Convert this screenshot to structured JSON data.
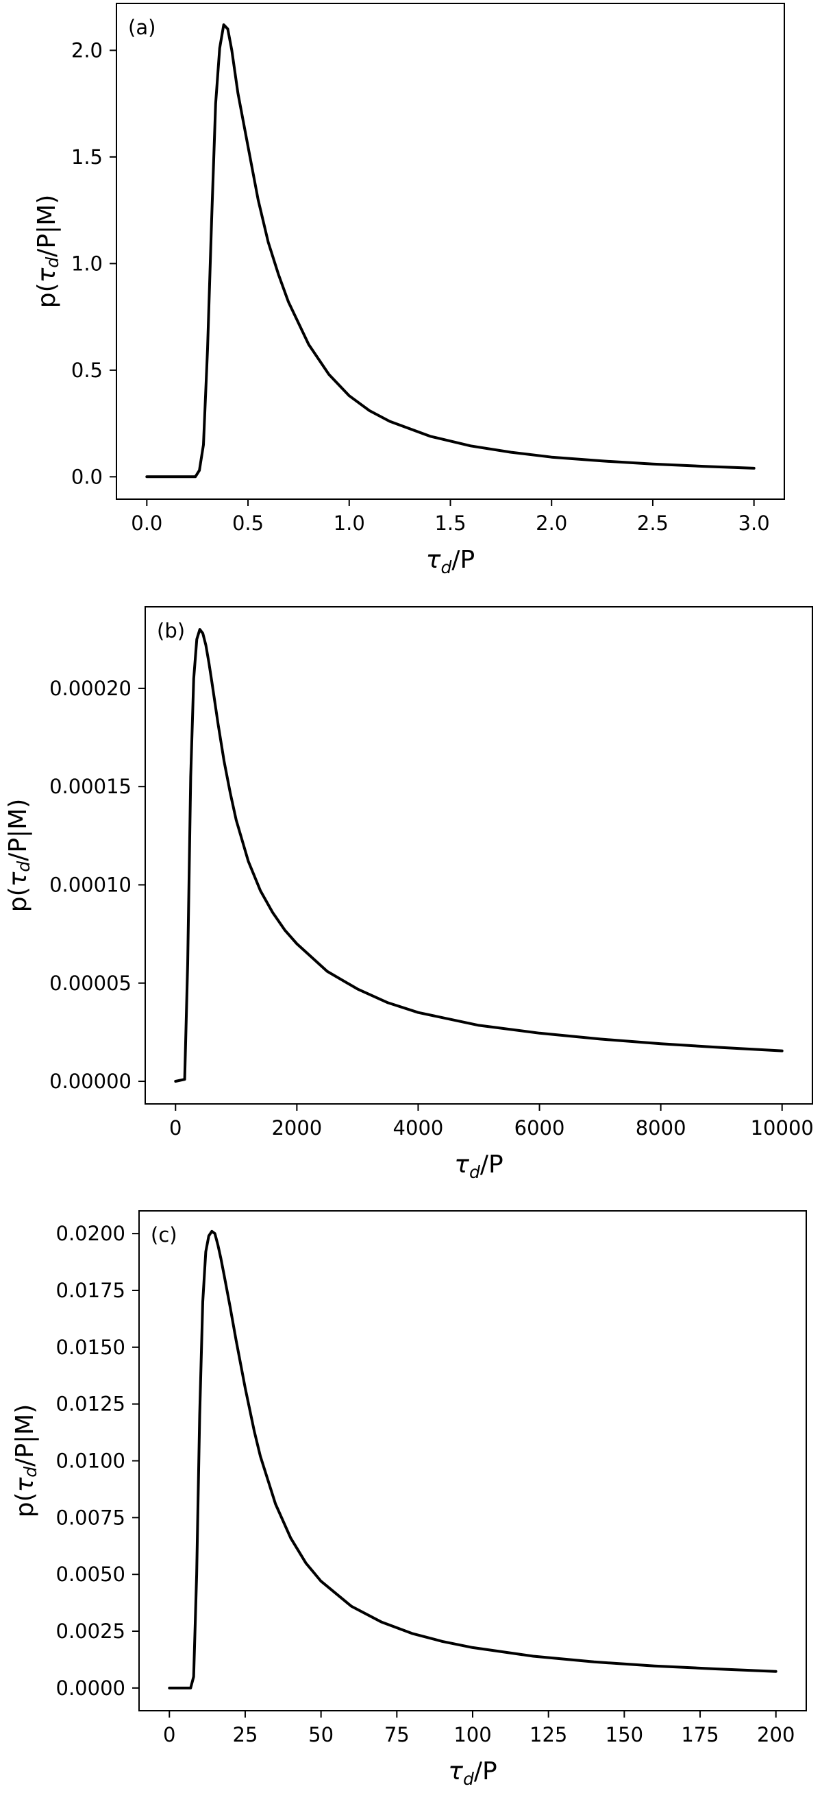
{
  "chart_data": [
    {
      "type": "line",
      "panel_label": "(a)",
      "xlabel": "τ_d/P",
      "ylabel": "p(τ_d/P|M)",
      "xlim": [
        -0.15,
        3.15
      ],
      "ylim": [
        -0.105,
        2.22
      ],
      "xticks": [
        0.0,
        0.5,
        1.0,
        1.5,
        2.0,
        2.5,
        3.0
      ],
      "xtick_labels": [
        "0.0",
        "0.5",
        "1.0",
        "1.5",
        "2.0",
        "2.5",
        "3.0"
      ],
      "yticks": [
        0.0,
        0.5,
        1.0,
        1.5,
        2.0
      ],
      "ytick_labels": [
        "0.0",
        "0.5",
        "1.0",
        "1.5",
        "2.0"
      ],
      "series": [
        {
          "color": "#000000",
          "x": [
            0.0,
            0.1,
            0.2,
            0.24,
            0.26,
            0.28,
            0.3,
            0.32,
            0.34,
            0.36,
            0.38,
            0.4,
            0.42,
            0.45,
            0.5,
            0.55,
            0.6,
            0.65,
            0.7,
            0.8,
            0.9,
            1.0,
            1.1,
            1.2,
            1.4,
            1.6,
            1.8,
            2.0,
            2.25,
            2.5,
            2.75,
            3.0
          ],
          "y": [
            0.0,
            0.0,
            0.0,
            0.0,
            0.03,
            0.15,
            0.6,
            1.2,
            1.75,
            2.01,
            2.12,
            2.1,
            2.0,
            1.8,
            1.55,
            1.3,
            1.1,
            0.95,
            0.82,
            0.62,
            0.48,
            0.38,
            0.31,
            0.26,
            0.19,
            0.145,
            0.115,
            0.092,
            0.074,
            0.06,
            0.049,
            0.04
          ]
        }
      ]
    },
    {
      "type": "line",
      "panel_label": "(b)",
      "xlabel": "τ_d/P",
      "ylabel": "p(τ_d/P|M)",
      "xlim": [
        -500,
        10500
      ],
      "ylim": [
        -1.15e-05,
        0.0002415
      ],
      "xticks": [
        0,
        2000,
        4000,
        6000,
        8000,
        10000
      ],
      "xtick_labels": [
        "0",
        "2000",
        "4000",
        "6000",
        "8000",
        "10000"
      ],
      "yticks": [
        0.0,
        5e-05,
        0.0001,
        0.00015,
        0.0002
      ],
      "ytick_labels": [
        "0.00000",
        "0.00005",
        "0.00010",
        "0.00015",
        "0.00020"
      ],
      "series": [
        {
          "color": "#000000",
          "x": [
            0,
            150,
            200,
            250,
            300,
            350,
            400,
            450,
            500,
            550,
            600,
            700,
            800,
            900,
            1000,
            1200,
            1400,
            1600,
            1800,
            2000,
            2500,
            3000,
            3500,
            4000,
            5000,
            6000,
            7000,
            8000,
            9000,
            10000
          ],
          "y": [
            0.0,
            1e-06,
            6e-05,
            0.000155,
            0.000205,
            0.000225,
            0.00023,
            0.000228,
            0.000222,
            0.000213,
            0.000203,
            0.000182,
            0.000163,
            0.000147,
            0.000133,
            0.000112,
            9.7e-05,
            8.6e-05,
            7.7e-05,
            7e-05,
            5.6e-05,
            4.7e-05,
            4e-05,
            3.5e-05,
            2.85e-05,
            2.45e-05,
            2.15e-05,
            1.91e-05,
            1.72e-05,
            1.55e-05
          ]
        }
      ]
    },
    {
      "type": "line",
      "panel_label": "(c)",
      "xlabel": "τ_d/P",
      "ylabel": "p(τ_d/P|M)",
      "xlim": [
        -10,
        210
      ],
      "ylim": [
        -0.001,
        0.021
      ],
      "xticks": [
        0,
        25,
        50,
        75,
        100,
        125,
        150,
        175,
        200
      ],
      "xtick_labels": [
        "0",
        "25",
        "50",
        "75",
        "100",
        "125",
        "150",
        "175",
        "200"
      ],
      "yticks": [
        0.0,
        0.0025,
        0.005,
        0.0075,
        0.01,
        0.0125,
        0.015,
        0.0175,
        0.02
      ],
      "ytick_labels": [
        "0.0000",
        "0.0025",
        "0.0050",
        "0.0075",
        "0.0100",
        "0.0125",
        "0.0150",
        "0.0175",
        "0.0200"
      ],
      "series": [
        {
          "color": "#000000",
          "x": [
            0,
            5,
            7,
            8,
            9,
            10,
            11,
            12,
            13,
            14,
            15,
            16,
            17,
            18,
            20,
            22,
            25,
            28,
            30,
            35,
            40,
            45,
            50,
            60,
            70,
            80,
            90,
            100,
            120,
            140,
            160,
            180,
            200
          ],
          "y": [
            0.0,
            0.0,
            0.0,
            0.0005,
            0.005,
            0.012,
            0.017,
            0.0192,
            0.0199,
            0.0201,
            0.02,
            0.0195,
            0.0189,
            0.0182,
            0.0168,
            0.0153,
            0.0132,
            0.0113,
            0.0102,
            0.0081,
            0.0066,
            0.0055,
            0.0047,
            0.0036,
            0.0029,
            0.0024,
            0.00205,
            0.00178,
            0.0014,
            0.00115,
            0.00097,
            0.00084,
            0.00073
          ]
        }
      ]
    }
  ]
}
